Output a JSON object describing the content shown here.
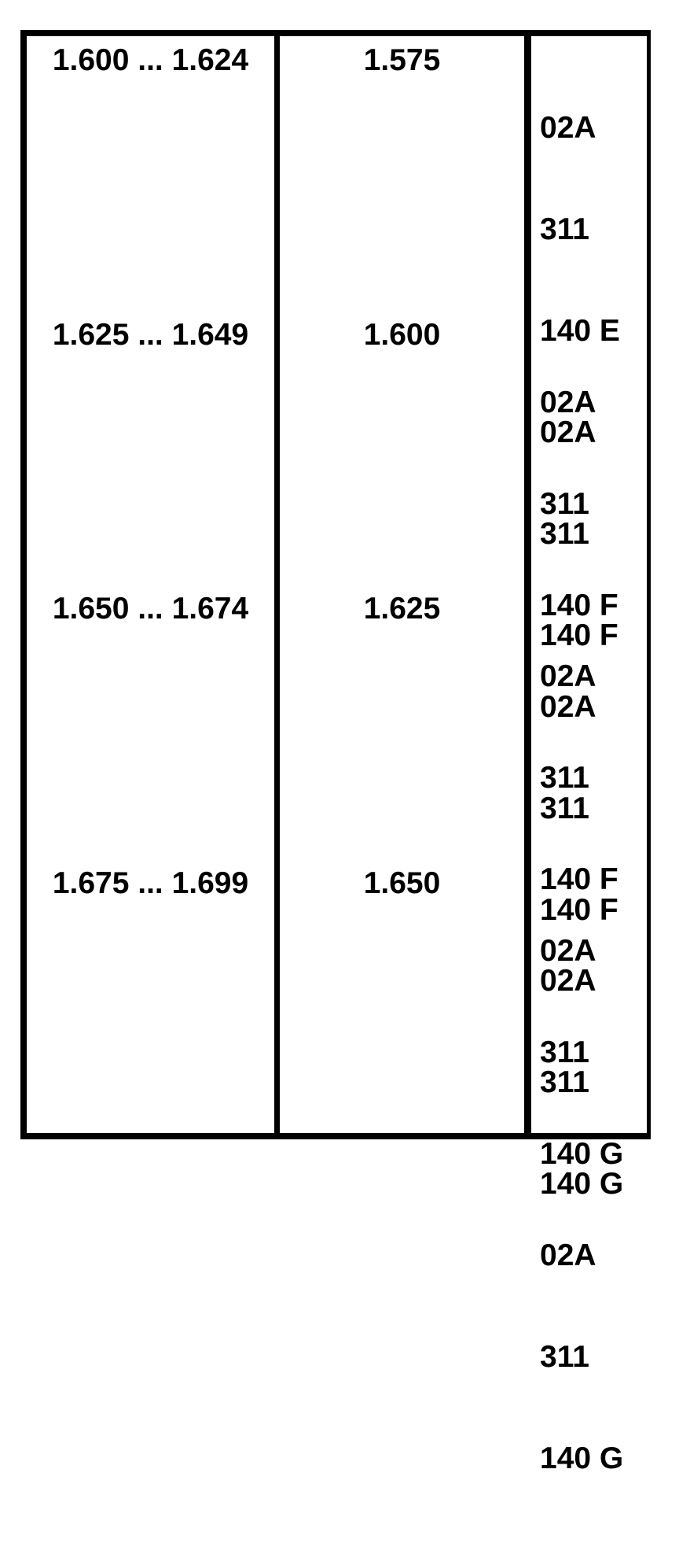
{
  "table": {
    "rows": [
      {
        "range": "1.600 ... 1.624",
        "value": "1.575",
        "codes": [
          "02A",
          "311",
          "140 E",
          "02A",
          "311",
          "140 F"
        ]
      },
      {
        "range": "1.625 ... 1.649",
        "value": "1.600",
        "codes": [
          "02A",
          "311",
          "140 F",
          "02A",
          "311",
          "140 F"
        ]
      },
      {
        "range": "1.650 ... 1.674",
        "value": "1.625",
        "codes": [
          "02A",
          "311",
          "140 F",
          "02A",
          "311",
          "140 G"
        ]
      },
      {
        "range": "1.675 ... 1.699",
        "value": "1.650",
        "codes": [
          "02A",
          "311",
          "140 G",
          "02A",
          "311",
          "140 G"
        ]
      }
    ],
    "colors": {
      "border": "#000000",
      "text": "#000000",
      "background": "#ffffff"
    }
  }
}
